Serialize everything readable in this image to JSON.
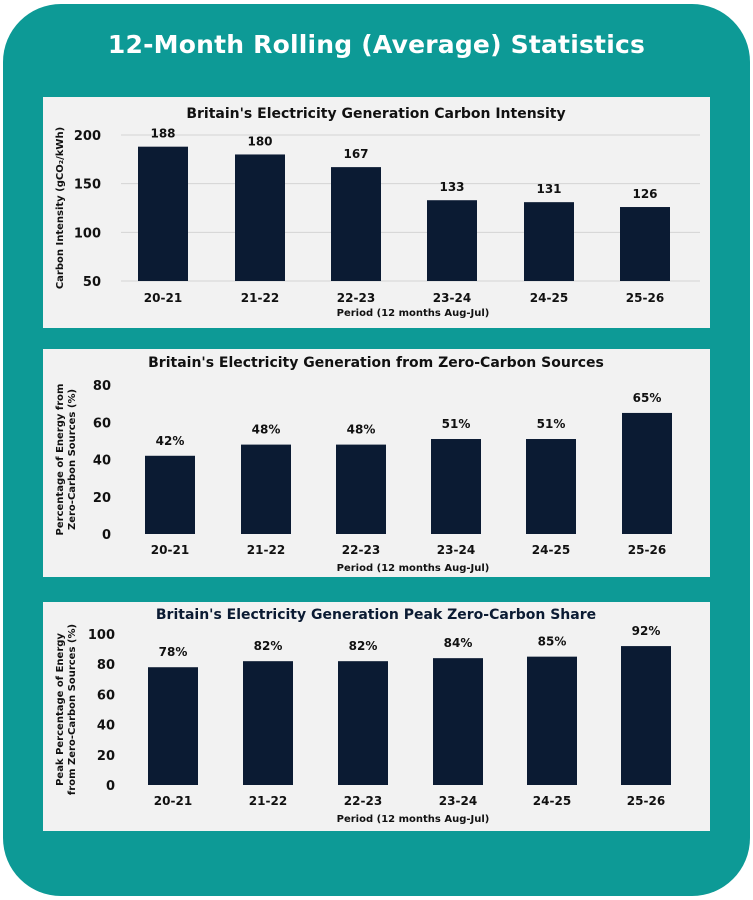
{
  "page_title": "12-Month Rolling (Average) Statistics",
  "colors": {
    "background": "#0d9a96",
    "panel": "#f2f2f2",
    "bar": "#0b1b33",
    "title": "#ffffff"
  },
  "chart_data": [
    {
      "type": "bar",
      "title": "Britain's Electricity Generation Carbon Intensity",
      "xlabel": "Period (12 months Aug-Jul)",
      "ylabel": "Carbon Intensity (gCO₂/kWh)",
      "categories": [
        "20-21",
        "21-22",
        "22-23",
        "23-24",
        "24-25",
        "25-26"
      ],
      "values": [
        188,
        180,
        167,
        133,
        131,
        126
      ],
      "data_labels": [
        "188",
        "180",
        "167",
        "133",
        "131",
        "126"
      ],
      "ylim": [
        50,
        200
      ],
      "yticks": [
        50,
        100,
        150,
        200
      ],
      "grid": true
    },
    {
      "type": "bar",
      "title": "Britain's Electricity Generation from Zero-Carbon Sources",
      "xlabel": "Period (12 months Aug-Jul)",
      "ylabel_lines": [
        "Percentage of Energy from",
        "Zero-Carbon Sources (%)"
      ],
      "categories": [
        "20-21",
        "21-22",
        "22-23",
        "23-24",
        "24-25",
        "25-26"
      ],
      "values": [
        42,
        48,
        48,
        51,
        51,
        65
      ],
      "data_labels": [
        "42%",
        "48%",
        "48%",
        "51%",
        "51%",
        "65%"
      ],
      "ylim": [
        0,
        80
      ],
      "yticks": [
        0,
        20,
        40,
        60,
        80
      ],
      "grid": false
    },
    {
      "type": "bar",
      "title": "Britain's Electricity Generation Peak Zero-Carbon Share",
      "xlabel": "Period (12 months Aug-Jul)",
      "ylabel_lines": [
        "Peak Percentage of Energy",
        "from Zero-Carbon Sources (%)"
      ],
      "categories": [
        "20-21",
        "21-22",
        "22-23",
        "23-24",
        "24-25",
        "25-26"
      ],
      "values": [
        78,
        82,
        82,
        84,
        85,
        92
      ],
      "data_labels": [
        "78%",
        "82%",
        "82%",
        "84%",
        "85%",
        "92%"
      ],
      "ylim": [
        0,
        100
      ],
      "yticks": [
        0,
        20,
        40,
        60,
        80,
        100
      ],
      "grid": false
    }
  ]
}
